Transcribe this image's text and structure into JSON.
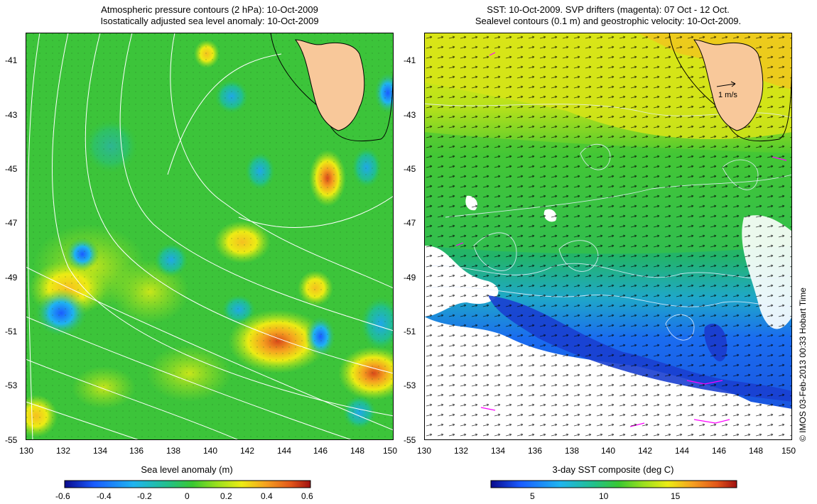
{
  "left_panel": {
    "title_line1": "Atmospheric pressure contours (2 hPa): 10-Oct-2009",
    "title_line2": "Isostatically adjusted sea level anomaly: 10-Oct-2009",
    "y_ticks": [
      "-41",
      "-43",
      "-45",
      "-47",
      "-49",
      "-51",
      "-53",
      "-55"
    ],
    "x_ticks": [
      "130",
      "132",
      "134",
      "136",
      "138",
      "140",
      "142",
      "144",
      "146",
      "148",
      "150"
    ],
    "colorbar": {
      "title": "Sea level anomaly (m)",
      "ticks": [
        "-0.6",
        "-0.4",
        "-0.2",
        "0",
        "0.2",
        "0.4",
        "0.6"
      ],
      "range": [
        -0.6,
        0.6
      ],
      "colormap": [
        "#0a0a8c",
        "#1a5cff",
        "#1fb4f0",
        "#22c08a",
        "#39c832",
        "#9ae01e",
        "#ecec14",
        "#f5a020",
        "#e2561a",
        "#a01010"
      ]
    }
  },
  "right_panel": {
    "title_line1": "SST: 10-Oct-2009. SVP drifters (magenta): 07 Oct - 12 Oct.",
    "title_line2": "Sealevel contours (0.1 m) and geostrophic velocity: 10-Oct-2009.",
    "y_ticks": [
      "-41",
      "-43",
      "-45",
      "-47",
      "-49",
      "-51",
      "-53",
      "-55"
    ],
    "x_ticks": [
      "130",
      "132",
      "134",
      "136",
      "138",
      "140",
      "142",
      "144",
      "146",
      "148",
      "150"
    ],
    "vector_scale_label": "1 m/s",
    "colorbar": {
      "title": "3-day SST composite (deg C)",
      "ticks": [
        "5",
        "10",
        "15"
      ],
      "colormap": [
        "#0a0a8c",
        "#1a5cff",
        "#1fb4f0",
        "#22c08a",
        "#39c832",
        "#9ae01e",
        "#ecec14",
        "#f5a020",
        "#e2561a",
        "#a01010"
      ]
    }
  },
  "credit": "© IMOS 03-Feb-2013 00:33 Hobart Time",
  "colors": {
    "land": "#f8c89a",
    "no_data": "#ffffff",
    "pressure_contours": "#ffffff",
    "drifters": "#ff00ff",
    "coastline": "#000000"
  },
  "map_extent": {
    "lon": [
      130,
      150
    ],
    "lat": [
      -55,
      -40.2
    ]
  }
}
